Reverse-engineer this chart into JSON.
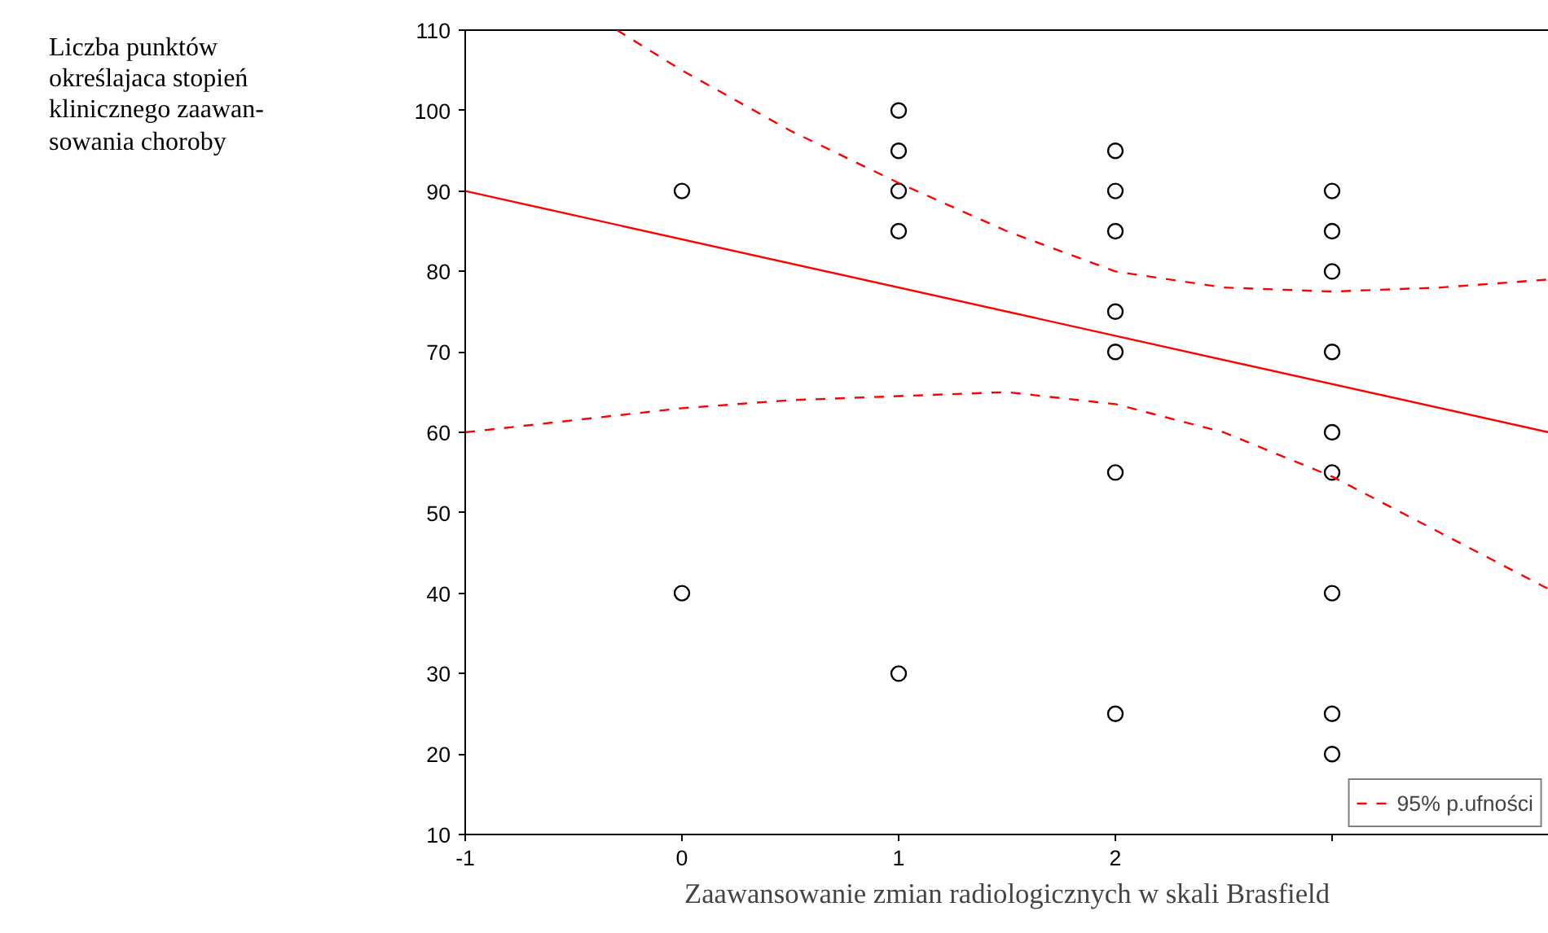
{
  "chart_data": {
    "type": "scatter",
    "xlabel": "Zaawansowanie zmian radiologicznych w skali Brasfield",
    "annotations": [
      "Liczba punktów\nokreślajaca stopień\nklinicznego zaawan-\nsowania choroby"
    ],
    "xlim": [
      -1,
      4
    ],
    "ylim": [
      10,
      110
    ],
    "xticks": [
      -1,
      0,
      1,
      2,
      {
        "value": 3,
        "label": null
      }
    ],
    "yticks": [
      10,
      20,
      30,
      40,
      50,
      60,
      70,
      80,
      90,
      100,
      110
    ],
    "grid": false,
    "legend": "bottom right",
    "series": [
      {
        "marker": "circle",
        "color": "#000000",
        "x": [
          0,
          0,
          1,
          1,
          1,
          1,
          1,
          2,
          2,
          2,
          2,
          2,
          2,
          2,
          3,
          3,
          3,
          3,
          3,
          3,
          3,
          3,
          3
        ],
        "values": [
          90,
          40,
          100,
          95,
          90,
          85,
          30,
          95,
          90,
          85,
          75,
          70,
          55,
          25,
          90,
          85,
          80,
          70,
          60,
          55,
          40,
          25,
          20
        ]
      },
      {
        "type": "line",
        "marker": "none",
        "color": "#ff0000",
        "line_style": "solid",
        "x": [
          -1,
          4
        ],
        "values": [
          90,
          60
        ]
      },
      {
        "type": "line",
        "marker": "none",
        "name": "95% p.ufności",
        "color": "#ff0000",
        "line_style": "dashed",
        "x": [
          -0.3,
          0,
          0.5,
          1,
          1.5,
          2,
          2.5,
          3,
          3.5,
          4
        ],
        "values": [
          110,
          105,
          97.5,
          91,
          85,
          80,
          78,
          77.5,
          78,
          79
        ]
      },
      {
        "type": "line",
        "marker": "none",
        "color": "#ff0000",
        "line_style": "dashed",
        "x": [
          -1,
          -0.5,
          0,
          0.5,
          1,
          1.5,
          2,
          2.5,
          3,
          3.5,
          4
        ],
        "values": [
          60,
          61.5,
          63,
          64,
          64.5,
          65,
          63.5,
          60,
          54.5,
          47.5,
          40.5
        ]
      }
    ]
  }
}
